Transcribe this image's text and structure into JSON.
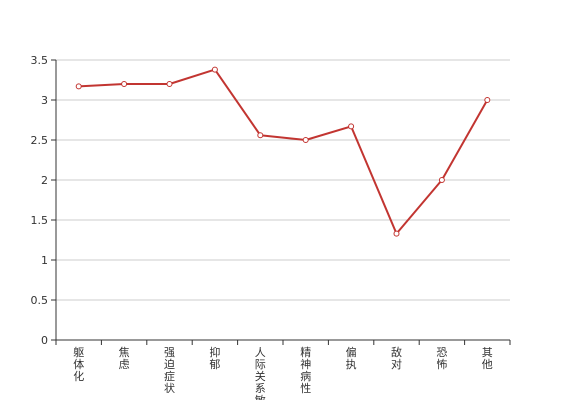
{
  "chart_data": {
    "type": "line",
    "title": "",
    "xlabel": "",
    "ylabel": "",
    "categories": [
      "躯体化",
      "焦虑",
      "强迫症状",
      "抑郁",
      "人际关系敏感",
      "精神病性",
      "偏执",
      "敌对",
      "恐怖",
      "其他"
    ],
    "series": [
      {
        "values": [
          3.17,
          3.2,
          3.2,
          3.38,
          2.56,
          2.5,
          2.67,
          1.33,
          2.0,
          3.0
        ]
      }
    ],
    "y_ticks": [
      "0",
      "0.5",
      "1",
      "1.5",
      "2",
      "2.5",
      "3",
      "3.5"
    ],
    "ylim": [
      0,
      3.5
    ],
    "grid": true,
    "legend": "none",
    "colors": {
      "line": "#c23531",
      "point_fill": "#ffffff",
      "grid": "#cccccc",
      "axis": "#333333",
      "text": "#333333"
    }
  }
}
